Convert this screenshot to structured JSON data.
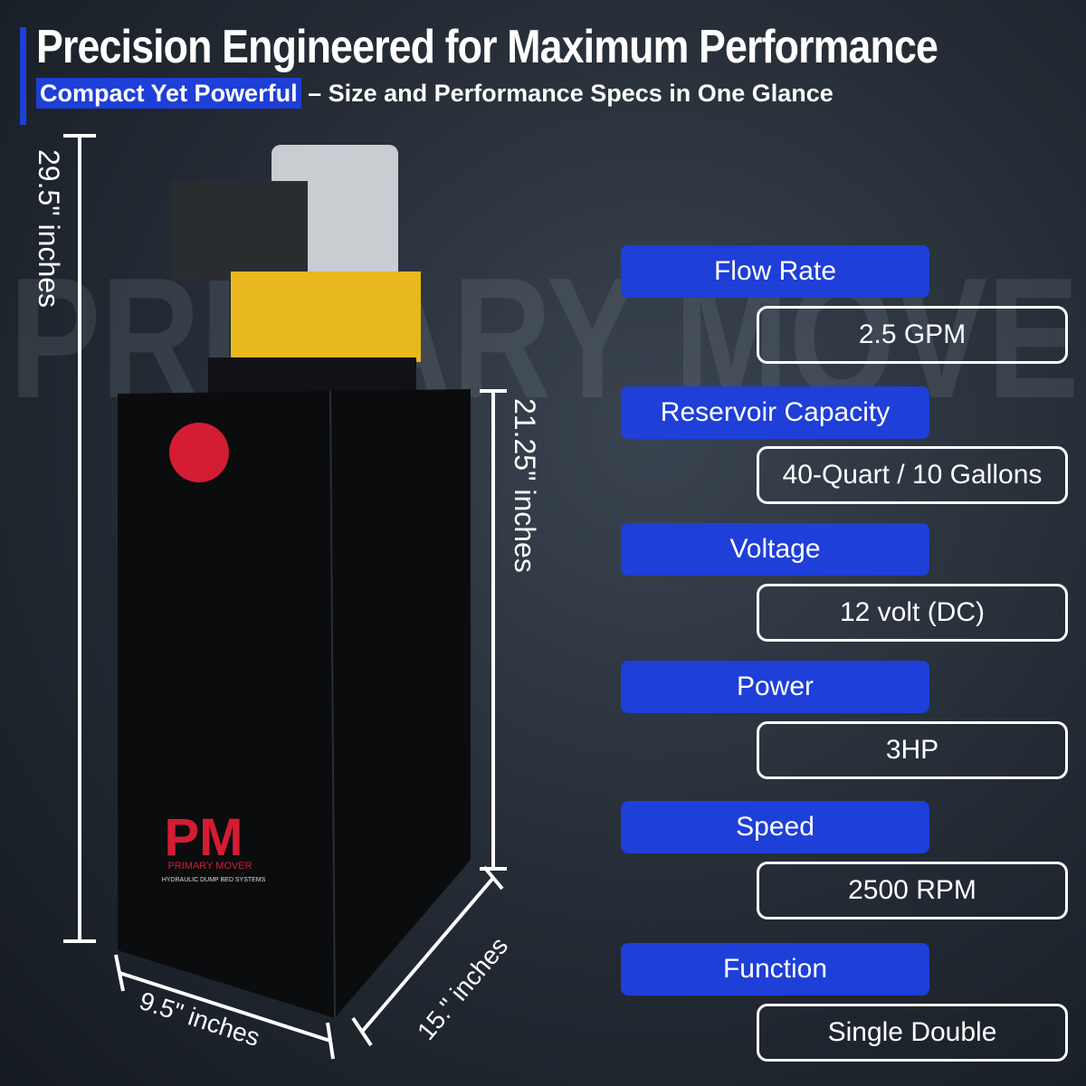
{
  "header": {
    "title": "Precision Engineered for Maximum Performance",
    "subtitle_highlight": "Compact Yet Powerful",
    "subtitle_rest": "– Size and Performance Specs in One Glance"
  },
  "watermark": "PRIMARY MOVER",
  "dimensions": {
    "height_total": "29.5\" inches",
    "height_tank": "21.25\" inches",
    "width": "9.5\" inches",
    "depth": "15.\" inches"
  },
  "logo": {
    "mark": "PM",
    "name": "PRIMARY MOVER",
    "tagline": "HYDRAULIC DUMP BED SYSTEMS"
  },
  "specs": [
    {
      "label": "Flow Rate",
      "value": "2.5 GPM"
    },
    {
      "label": "Reservoir Capacity",
      "value": "40-Quart / 10 Gallons"
    },
    {
      "label": "Voltage",
      "value": "12 volt (DC)"
    },
    {
      "label": "Power",
      "value": "3HP"
    },
    {
      "label": "Speed",
      "value": "2500 RPM"
    },
    {
      "label": "Function",
      "value": "Single Double"
    }
  ]
}
